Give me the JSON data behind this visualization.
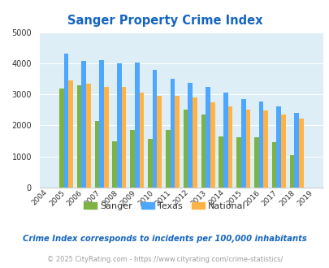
{
  "title": "Sanger Property Crime Index",
  "years": [
    2004,
    2005,
    2006,
    2007,
    2008,
    2009,
    2010,
    2011,
    2012,
    2013,
    2014,
    2015,
    2016,
    2017,
    2018,
    2019
  ],
  "sanger": [
    null,
    3200,
    3280,
    2150,
    1500,
    1850,
    1570,
    1850,
    2520,
    2350,
    1650,
    1630,
    1620,
    1450,
    1050,
    null
  ],
  "texas": [
    null,
    4320,
    4080,
    4100,
    4000,
    4030,
    3800,
    3500,
    3380,
    3250,
    3050,
    2850,
    2780,
    2600,
    2400,
    null
  ],
  "national": [
    null,
    3450,
    3350,
    3250,
    3230,
    3050,
    2960,
    2950,
    2900,
    2730,
    2620,
    2510,
    2470,
    2360,
    2220,
    null
  ],
  "sanger_color": "#7cb342",
  "texas_color": "#4da6ff",
  "national_color": "#ffb347",
  "bg_color": "#ddeef6",
  "ylim": [
    0,
    5000
  ],
  "yticks": [
    0,
    1000,
    2000,
    3000,
    4000,
    5000
  ],
  "footnote1": "Crime Index corresponds to incidents per 100,000 inhabitants",
  "footnote2": "© 2025 CityRating.com - https://www.cityrating.com/crime-statistics/",
  "title_color": "#1565c0",
  "footnote1_color": "#1565c0",
  "footnote2_color": "#9e9e9e",
  "legend_text_color": "#333333"
}
